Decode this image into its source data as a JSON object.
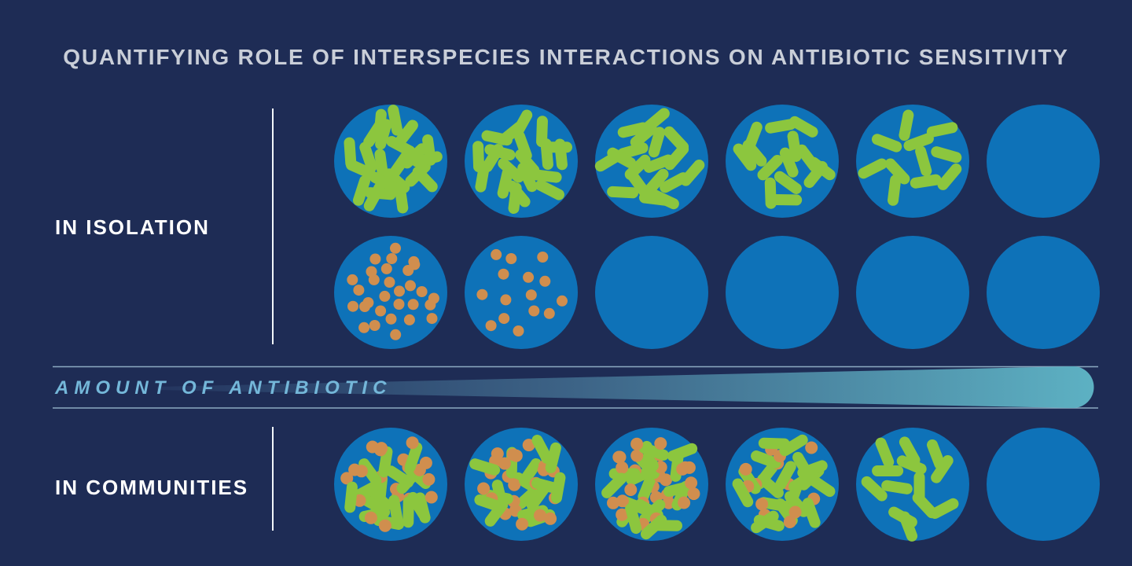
{
  "title": "QUANTIFYING ROLE OF INTERSPECIES INTERACTIONS ON ANTIBIOTIC SENSITIVITY",
  "sections": [
    {
      "id": "in-isolation",
      "label": "IN ISOLATION"
    },
    {
      "id": "in-communities",
      "label": "IN COMMUNITIES"
    }
  ],
  "axis_band": {
    "label": "AMOUNT OF ANTIBIOTIC",
    "direction": "increasing-left-to-right"
  },
  "dish_rows": [
    {
      "section": "in-isolation",
      "organism": "green-rod-bacteria",
      "dishes": [
        {
          "green": 22,
          "orange": 0
        },
        {
          "green": 20,
          "orange": 0
        },
        {
          "green": 18,
          "orange": 0
        },
        {
          "green": 14,
          "orange": 0
        },
        {
          "green": 11,
          "orange": 0
        },
        {
          "green": 0,
          "orange": 0
        }
      ]
    },
    {
      "section": "in-isolation",
      "organism": "orange-dot-bacteria",
      "dishes": [
        {
          "green": 0,
          "orange": 30
        },
        {
          "green": 0,
          "orange": 15
        },
        {
          "green": 0,
          "orange": 0
        },
        {
          "green": 0,
          "orange": 0
        },
        {
          "green": 0,
          "orange": 0
        },
        {
          "green": 0,
          "orange": 0
        }
      ]
    },
    {
      "section": "in-communities",
      "organism": "mixed-community",
      "dishes": [
        {
          "green": 17,
          "orange": 20
        },
        {
          "green": 16,
          "orange": 23
        },
        {
          "green": 18,
          "orange": 28
        },
        {
          "green": 20,
          "orange": 13
        },
        {
          "green": 13,
          "orange": 0
        },
        {
          "green": 0,
          "orange": 0
        }
      ]
    }
  ],
  "colors": {
    "background": "#1e2c55",
    "title_text": "#c9ced8",
    "label_text": "#ffffff",
    "divider": "#f2f6f9",
    "dish_fill": "#0e72b8",
    "green_bacteria": "#8cc63e",
    "orange_bacteria": "#d08e4e",
    "band_label_text": "#74b7d9",
    "band_rule": "#9fc0d4",
    "wedge_start": "#24355f",
    "wedge_mid": "#3d6487",
    "wedge_end": "#5db1c3"
  }
}
